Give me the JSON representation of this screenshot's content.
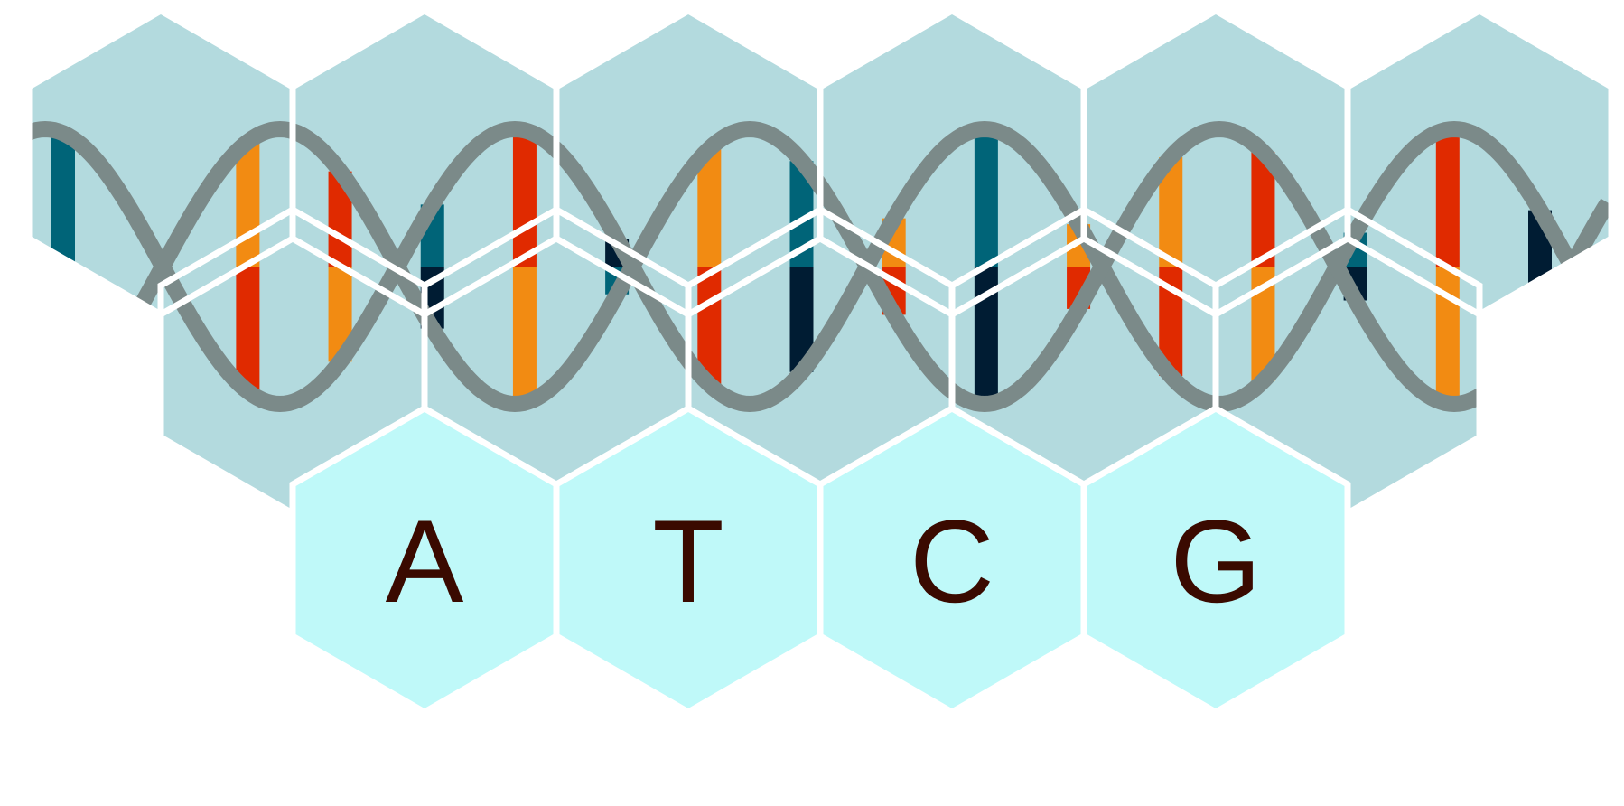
{
  "colors": {
    "hex_fill": "#b3dade",
    "letter_hex_fill": "#bff9f9",
    "hex_border": "#ffffff",
    "backbone": "#7b8a89",
    "rung_red": "#e02a00",
    "rung_orange": "#f28b12",
    "rung_teal": "#006478",
    "rung_navy": "#001c33",
    "letter_color": "#3a0a00"
  },
  "bases": [
    {
      "letter": "A"
    },
    {
      "letter": "T"
    },
    {
      "letter": "C"
    },
    {
      "letter": "G"
    }
  ],
  "helix_rungs": [
    {
      "top": "teal",
      "bottom": "teal"
    },
    {
      "top": "orange",
      "bottom": "red"
    },
    {
      "top": "orange",
      "bottom": "red"
    },
    {
      "top": "red",
      "bottom": "orange"
    },
    {
      "top": "teal",
      "bottom": "navy"
    },
    {
      "top": "red",
      "bottom": "orange"
    },
    {
      "top": "navy",
      "bottom": "teal"
    },
    {
      "top": "orange",
      "bottom": "red"
    },
    {
      "top": "teal",
      "bottom": "navy"
    },
    {
      "top": "orange",
      "bottom": "red"
    },
    {
      "top": "teal",
      "bottom": "navy"
    },
    {
      "top": "orange",
      "bottom": "red"
    },
    {
      "top": "orange",
      "bottom": "red"
    },
    {
      "top": "red",
      "bottom": "orange"
    },
    {
      "top": "teal",
      "bottom": "navy"
    },
    {
      "top": "red",
      "bottom": "orange"
    },
    {
      "top": "navy",
      "bottom": "navy"
    }
  ]
}
